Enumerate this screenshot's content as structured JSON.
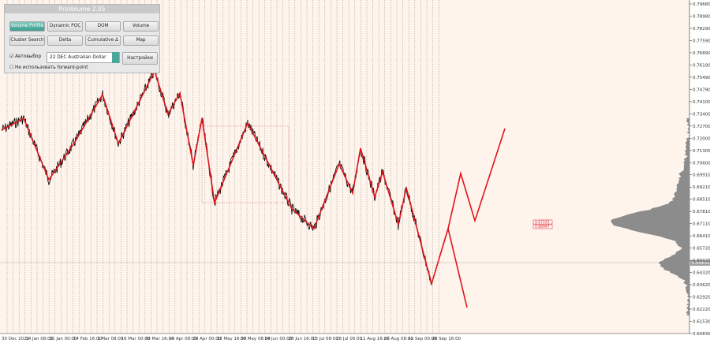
{
  "panel": {
    "title": "ProVolume 2.05",
    "buttons": [
      "Volume Profile",
      "Dynamic POC",
      "DOM",
      "Volume",
      "Cluster Search",
      "Delta",
      "Cumulative Δ",
      "Map"
    ],
    "auto_select": "Автовыбор",
    "instrument": "22 DEC Australian Dollar",
    "settings": "Настройки",
    "forward_point": "Не использовать forward-point"
  },
  "price_axis": [
    "0.79680",
    "0.78980",
    "0.78290",
    "0.77590",
    "0.76890",
    "0.76190",
    "0.75490",
    "0.74790",
    "0.74100",
    "0.73400",
    "0.72700",
    "0.72000",
    "0.71300",
    "0.70600",
    "0.69910",
    "0.69210",
    "0.68510",
    "0.67810",
    "0.67110",
    "0.66410",
    "0.65720",
    "0.65020",
    "0.64320",
    "0.63620",
    "0.62920",
    "0.62220",
    "0.61530",
    "0.60830"
  ],
  "current_price": "0.64631",
  "level_labels": [
    "0.67222",
    "0.66997"
  ],
  "time_axis": [
    "30 Dec 2021",
    "14 Jan 08:00",
    "31 Jan 00:00",
    "14 Feb 16:00",
    "1 Mar 08:00",
    "16 Mar 00:00",
    "30 Mar 16:00",
    "14 Apr 08:00",
    "29 Apr 00:00",
    "13 May 16:00",
    "30 May 08:00",
    "14 Jun 00:00",
    "28 Jun 16:00",
    "13 Jul 08:00",
    "28 Jul 00:00",
    "11 Aug 16:00",
    "26 Aug 08:00",
    "12 Sep 00:00",
    "26 Sep 16:00"
  ]
}
